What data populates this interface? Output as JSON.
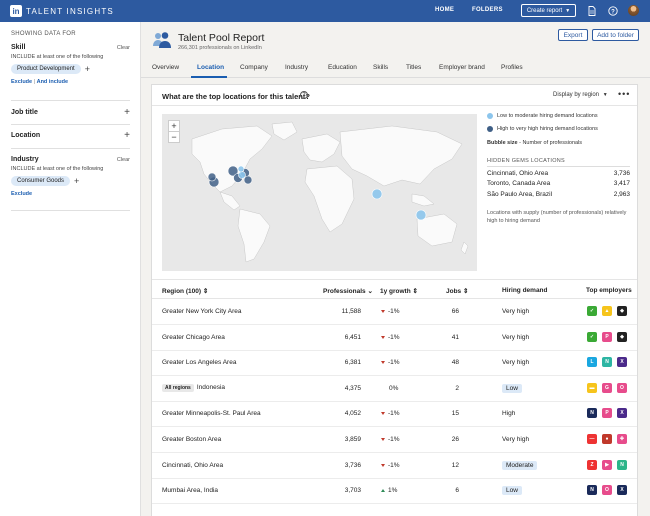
{
  "topbar": {
    "brand_letters": "in",
    "brand": "TALENT INSIGHTS",
    "home": "HOME",
    "folders": "FOLDERS",
    "create_report": "Create report"
  },
  "sidebar": {
    "heading": "SHOWING DATA FOR",
    "skill": {
      "title": "Skill",
      "clear": "Clear",
      "include": "INCLUDE at least one of the following",
      "chip": "Product Development",
      "exclude": "Exclude",
      "and_include": "And include"
    },
    "job_title": {
      "title": "Job title"
    },
    "location": {
      "title": "Location"
    },
    "industry": {
      "title": "Industry",
      "clear": "Clear",
      "include": "INCLUDE at least one of the following",
      "chip": "Consumer Goods",
      "exclude": "Exclude"
    }
  },
  "header": {
    "title": "Talent Pool Report",
    "subtitle": "266,301 professionals on LinkedIn",
    "export": "Export",
    "add_to_folder": "Add to folder"
  },
  "tabs": [
    "Overview",
    "Location",
    "Company",
    "Industry",
    "Education",
    "Skills",
    "Titles",
    "Employer brand",
    "Profiles"
  ],
  "active_tab": "Location",
  "card": {
    "question": "What are the top locations for this talent?",
    "help": "?",
    "display_by": "Display by region",
    "legend_low": "Low to moderate hiring demand locations",
    "legend_high": "High to very high hiring demand locations",
    "bubble_label": "Bubble size",
    "bubble_text": " - Number of professionals",
    "hidden_gems_title": "HIDDEN GEMS LOCATIONS",
    "hidden_gems": [
      {
        "name": "Cincinnati, Ohio Area",
        "value": "3,736"
      },
      {
        "name": "Toronto, Canada Area",
        "value": "3,417"
      },
      {
        "name": "São Paulo Area, Brazil",
        "value": "2,963"
      }
    ],
    "note": "Locations with supply (number of professionals) relatively high to hiring demand",
    "colors": {
      "low": "#8cc5ec",
      "high": "#3f5f86"
    }
  },
  "table": {
    "headers": {
      "region": "Region (100)",
      "professionals": "Professionals",
      "growth": "1y growth",
      "jobs": "Jobs",
      "demand": "Hiring demand",
      "employers": "Top employers"
    },
    "all_regions_badge": "All regions",
    "rows": [
      {
        "region": "Greater New York City Area",
        "professionals": "11,588",
        "growth": "-1%",
        "dir": "down",
        "jobs": "66",
        "demand": "Very high",
        "pill": false,
        "emp": [
          [
            "#3aa935",
            "✓"
          ],
          [
            "#f6c41c",
            "▲"
          ],
          [
            "#222",
            "◆"
          ]
        ]
      },
      {
        "region": "Greater Chicago Area",
        "professionals": "6,451",
        "growth": "-1%",
        "dir": "down",
        "jobs": "41",
        "demand": "Very high",
        "pill": false,
        "emp": [
          [
            "#3aa935",
            "✓"
          ],
          [
            "#e74c8c",
            "P"
          ],
          [
            "#222",
            "◆"
          ]
        ]
      },
      {
        "region": "Greater Los Angeles Area",
        "professionals": "6,381",
        "growth": "-1%",
        "dir": "down",
        "jobs": "48",
        "demand": "Very high",
        "pill": false,
        "emp": [
          [
            "#1aa7e0",
            "L"
          ],
          [
            "#2db5a3",
            "N"
          ],
          [
            "#4b2a8a",
            "X"
          ]
        ]
      },
      {
        "region": "Indonesia",
        "all_regions": true,
        "professionals": "4,375",
        "growth": "0%",
        "dir": "none",
        "jobs": "2",
        "demand": "Low",
        "pill": true,
        "emp": [
          [
            "#f6c41c",
            "▬"
          ],
          [
            "#e74c8c",
            "G"
          ],
          [
            "#e74c8c",
            "O"
          ]
        ]
      },
      {
        "region": "Greater Minneapolis-St. Paul Area",
        "professionals": "4,052",
        "growth": "-1%",
        "dir": "down",
        "jobs": "15",
        "demand": "High",
        "pill": false,
        "emp": [
          [
            "#1a2a5a",
            "N"
          ],
          [
            "#e74c8c",
            "P"
          ],
          [
            "#4b2a8a",
            "X"
          ]
        ]
      },
      {
        "region": "Greater Boston Area",
        "professionals": "3,859",
        "growth": "-1%",
        "dir": "down",
        "jobs": "26",
        "demand": "Very high",
        "pill": false,
        "emp": [
          [
            "#e33",
            "—"
          ],
          [
            "#c0392b",
            "●"
          ],
          [
            "#e74c8c",
            "✚"
          ]
        ]
      },
      {
        "region": "Cincinnati, Ohio Area",
        "professionals": "3,736",
        "growth": "-1%",
        "dir": "down",
        "jobs": "12",
        "demand": "Moderate",
        "pill": true,
        "emp": [
          [
            "#e33",
            "Z"
          ],
          [
            "#e74c8c",
            "▶"
          ],
          [
            "#2db58a",
            "N"
          ]
        ]
      },
      {
        "region": "Mumbai Area, India",
        "professionals": "3,703",
        "growth": "1%",
        "dir": "up",
        "jobs": "6",
        "demand": "Low",
        "pill": true,
        "emp": [
          [
            "#1a2a5a",
            "N"
          ],
          [
            "#e74c8c",
            "O"
          ],
          [
            "#1a2a5a",
            "X"
          ]
        ]
      }
    ]
  }
}
